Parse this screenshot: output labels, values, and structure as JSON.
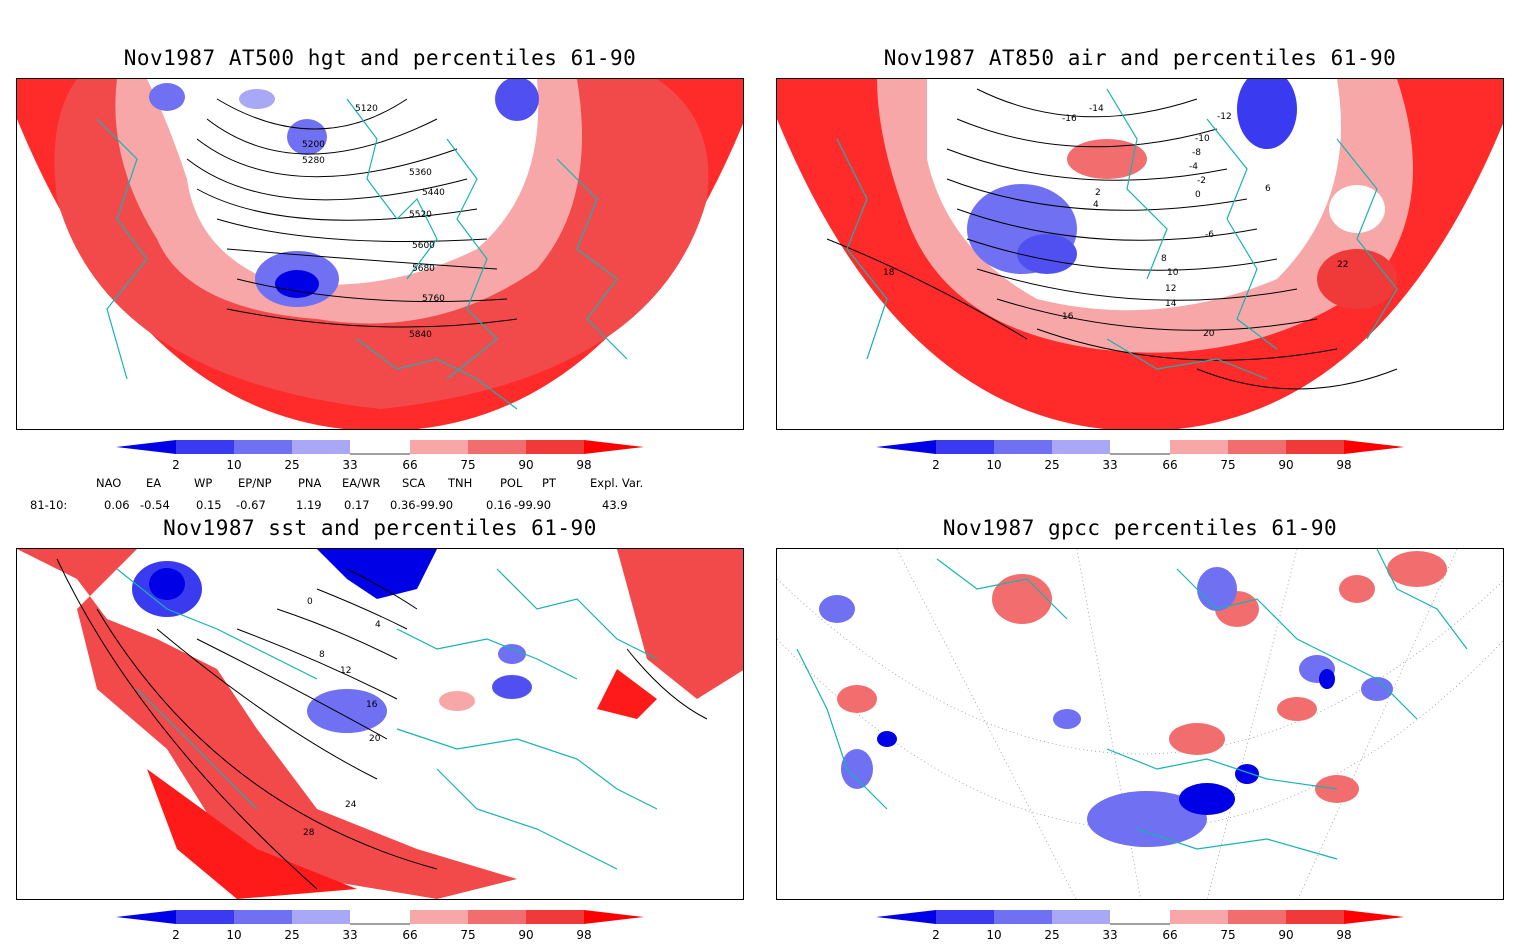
{
  "panels": [
    {
      "title": "Nov1987 AT500 hgt and percentiles 61-90",
      "contour_labels": [
        "5120",
        "5200",
        "5280",
        "5360",
        "5440",
        "5520",
        "5600",
        "5680",
        "5760",
        "5840"
      ]
    },
    {
      "title": "Nov1987 AT850 air and percentiles 61-90",
      "contour_labels": [
        "-16",
        "-14",
        "-12",
        "-10",
        "-8",
        "-6",
        "-4",
        "-2",
        "0",
        "2",
        "4",
        "6",
        "8",
        "10",
        "12",
        "14",
        "16",
        "18",
        "20",
        "22"
      ]
    },
    {
      "title": "Nov1987 sst and percentiles 61-90",
      "contour_labels": [
        "0",
        "4",
        "8",
        "12",
        "16",
        "20",
        "24",
        "28"
      ]
    },
    {
      "title": "Nov1987 gpcc percentiles 61-90",
      "contour_labels": []
    }
  ],
  "colorbar": {
    "labels": [
      "2",
      "10",
      "25",
      "33",
      "66",
      "75",
      "90",
      "98"
    ],
    "colors": [
      "#0000e6",
      "#3a3af0",
      "#7070f2",
      "#a8a8f6",
      "#ffffff",
      "#f7a7a7",
      "#f26e6e",
      "#f03a3a",
      "#ff0000"
    ]
  },
  "indices": {
    "headers": [
      "NAO",
      "EA",
      "WP",
      "EP/NP",
      "PNA",
      "EA/WR",
      "SCA",
      "TNH",
      "POL",
      "PT",
      "Expl. Var."
    ],
    "row_label": "81-10:",
    "values": [
      "0.06",
      "-0.54",
      "0.15",
      "-0.67",
      "1.19",
      "0.17",
      "0.36",
      "-99.90",
      "0.16",
      "-99.90",
      "43.9"
    ]
  }
}
